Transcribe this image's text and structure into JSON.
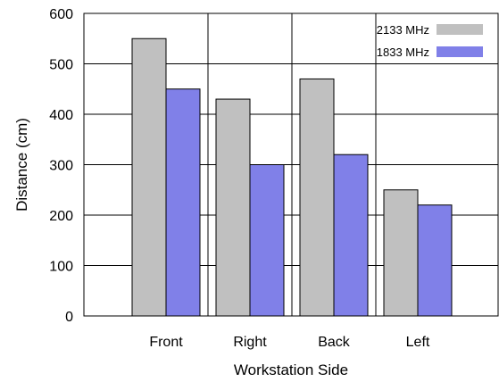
{
  "chart_data": {
    "type": "bar",
    "categories": [
      "Front",
      "Right",
      "Back",
      "Left"
    ],
    "series": [
      {
        "name": "2133 MHz",
        "values": [
          550,
          430,
          470,
          250
        ],
        "color": "#c0c0c0"
      },
      {
        "name": "1833 MHz",
        "values": [
          450,
          300,
          320,
          220
        ],
        "color": "#8080e8"
      }
    ],
    "xlabel": "Workstation Side",
    "ylabel": "Distance (cm)",
    "ylim": [
      0,
      600
    ],
    "yticks": [
      0,
      100,
      200,
      300,
      400,
      500,
      600
    ],
    "grid": true,
    "legend_position": "top-right"
  }
}
